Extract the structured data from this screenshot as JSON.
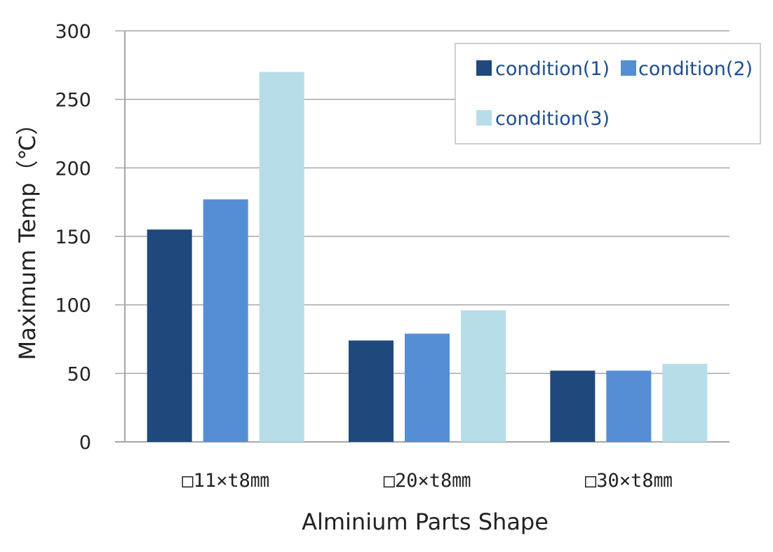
{
  "chart_data": {
    "type": "bar",
    "categories": [
      "□11×t8㎜",
      "□20×t8㎜",
      "□30×t8㎜"
    ],
    "series": [
      {
        "name": "condition(1)",
        "values": [
          155,
          74,
          52
        ],
        "color": "#1f497d"
      },
      {
        "name": "condition(2)",
        "values": [
          177,
          79,
          52
        ],
        "color": "#558ed5"
      },
      {
        "name": "condition(3)",
        "values": [
          270,
          96,
          57
        ],
        "color": "#b7dde8"
      }
    ],
    "title": "",
    "xlabel": "Alminium Parts Shape",
    "ylabel": "Maximum Temp（℃）",
    "ylim": [
      0,
      300
    ],
    "yticks": [
      "0",
      "50",
      "100",
      "150",
      "200",
      "250",
      "300"
    ],
    "grid": true,
    "legend_position": "top-right"
  }
}
